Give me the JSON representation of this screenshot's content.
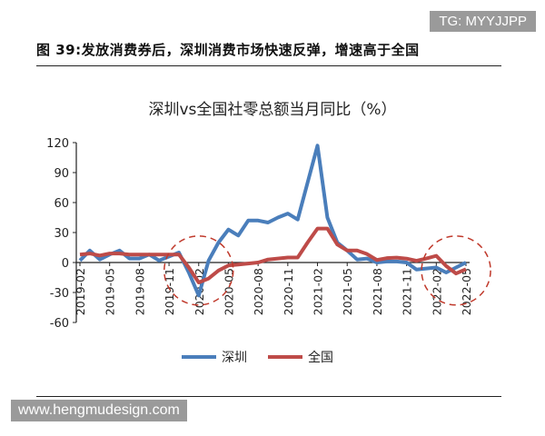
{
  "watermark_top": "TG: MYYJJPP",
  "figure_title": "图 39:发放消费券后，深圳消费市场快速反弹，增速高于全国",
  "watermark_bottom": "www.hengmudesign.com",
  "colors": {
    "shenzhen": "#4a7ebb",
    "national": "#be4b48",
    "highlight": "#c0392b"
  },
  "chart_data": {
    "type": "line",
    "title": "深圳vs全国社零总额当月同比（%）",
    "xlabel": "",
    "ylabel": "",
    "ylim": [
      -60,
      120
    ],
    "yticks": [
      120,
      90,
      60,
      30,
      0,
      -30,
      -60
    ],
    "xtick_labels": [
      "2019-02",
      "2019-05",
      "2019-08",
      "2019-11",
      "2020-02",
      "2020-05",
      "2020-08",
      "2020-11",
      "2021-02",
      "2021-05",
      "2021-08",
      "2021-11",
      "2022-02",
      "2022-05"
    ],
    "x": [
      "2019-02",
      "2019-03",
      "2019-04",
      "2019-05",
      "2019-06",
      "2019-07",
      "2019-08",
      "2019-09",
      "2019-10",
      "2019-11",
      "2019-12",
      "2020-01",
      "2020-02",
      "2020-03",
      "2020-04",
      "2020-05",
      "2020-06",
      "2020-07",
      "2020-08",
      "2020-09",
      "2020-10",
      "2020-11",
      "2020-12",
      "2021-01",
      "2021-02",
      "2021-03",
      "2021-04",
      "2021-05",
      "2021-06",
      "2021-07",
      "2021-08",
      "2021-09",
      "2021-10",
      "2021-11",
      "2021-12",
      "2022-01",
      "2022-02",
      "2022-03",
      "2022-04",
      "2022-05"
    ],
    "series": [
      {
        "name": "深圳",
        "values": [
          2,
          12,
          3,
          8,
          12,
          4,
          4,
          8,
          2,
          6,
          10,
          -10,
          -33,
          2,
          20,
          33,
          27,
          42,
          42,
          40,
          45,
          49,
          43,
          80,
          117,
          45,
          20,
          12,
          3,
          4,
          0,
          1,
          1,
          0,
          -7,
          -6,
          -5,
          -10,
          -5,
          0
        ]
      },
      {
        "name": "全国",
        "values": [
          8,
          9,
          7,
          9,
          9,
          8,
          8,
          8,
          8,
          8,
          8,
          -5,
          -20,
          -16,
          -8,
          -3,
          -2,
          -1,
          0,
          3,
          4,
          5,
          5,
          20,
          34,
          34,
          18,
          12,
          12,
          8.5,
          2.5,
          4.4,
          4.9,
          3.9,
          1.7,
          4,
          6.7,
          -3.5,
          -11,
          -6.7
        ]
      }
    ],
    "highlights": [
      "2020-02",
      "2022-04"
    ],
    "legend_position": "bottom",
    "grid": false
  }
}
